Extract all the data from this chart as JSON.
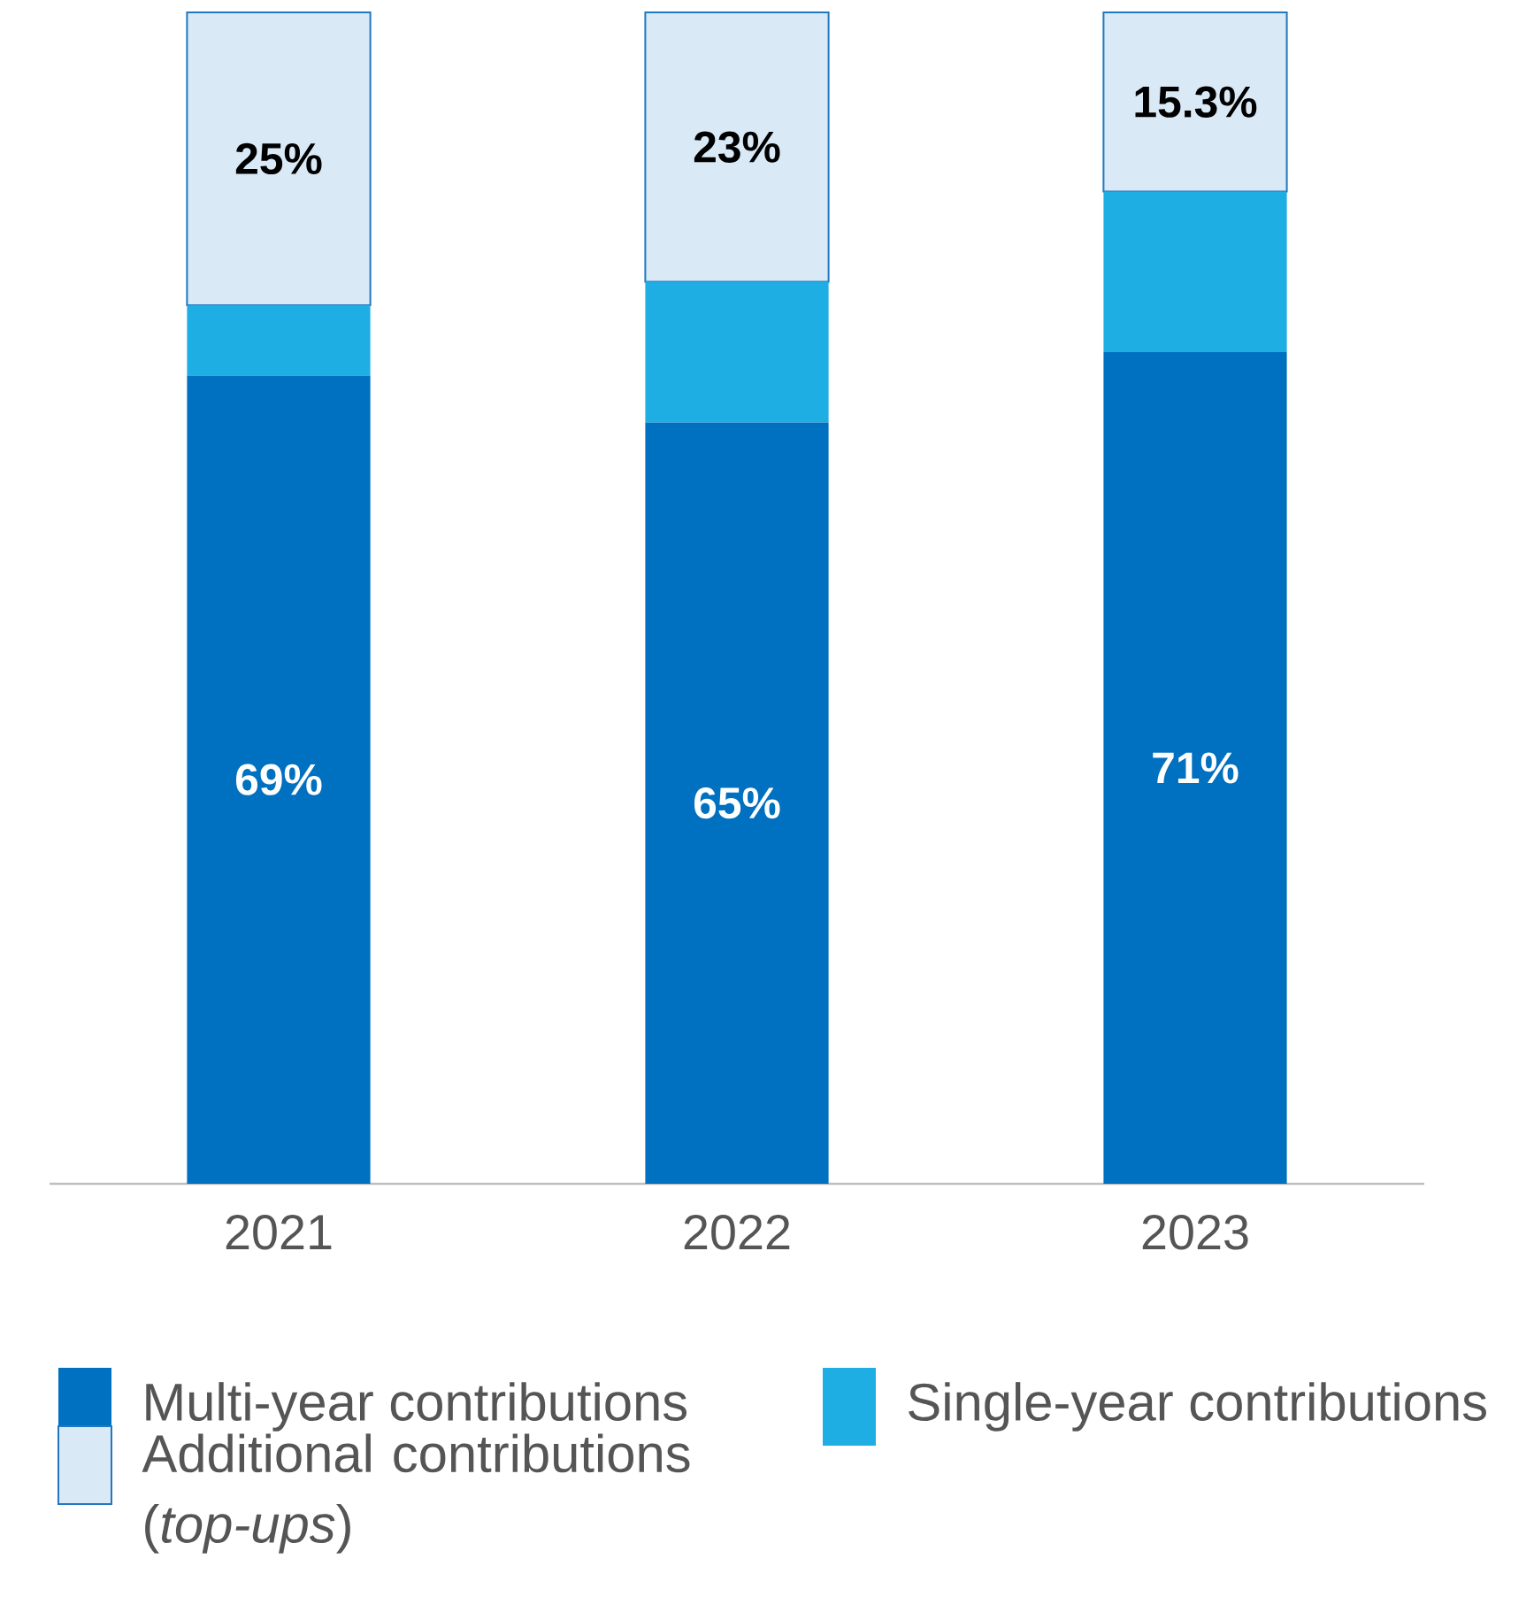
{
  "chart_data": {
    "type": "bar",
    "stacked": true,
    "categories": [
      "2021",
      "2022",
      "2023"
    ],
    "series": [
      {
        "name": "Multi-year contributions",
        "color": "#0070c0",
        "values": [
          69,
          65,
          71
        ],
        "value_labels": [
          "69%",
          "65%",
          "71%"
        ]
      },
      {
        "name": "Single-year contributions",
        "color": "#1eaee4",
        "values": [
          6,
          12,
          13.7
        ],
        "value_labels": [
          null,
          null,
          null
        ]
      },
      {
        "name": "Additional contributions (*top-ups*)",
        "color": "#d9e9f6",
        "values": [
          25,
          23,
          15.3
        ],
        "value_labels": [
          "25%",
          "23%",
          "15.3%"
        ]
      }
    ],
    "ylim": [
      0,
      100
    ],
    "tick_labels": "x",
    "legend": "bottom"
  }
}
